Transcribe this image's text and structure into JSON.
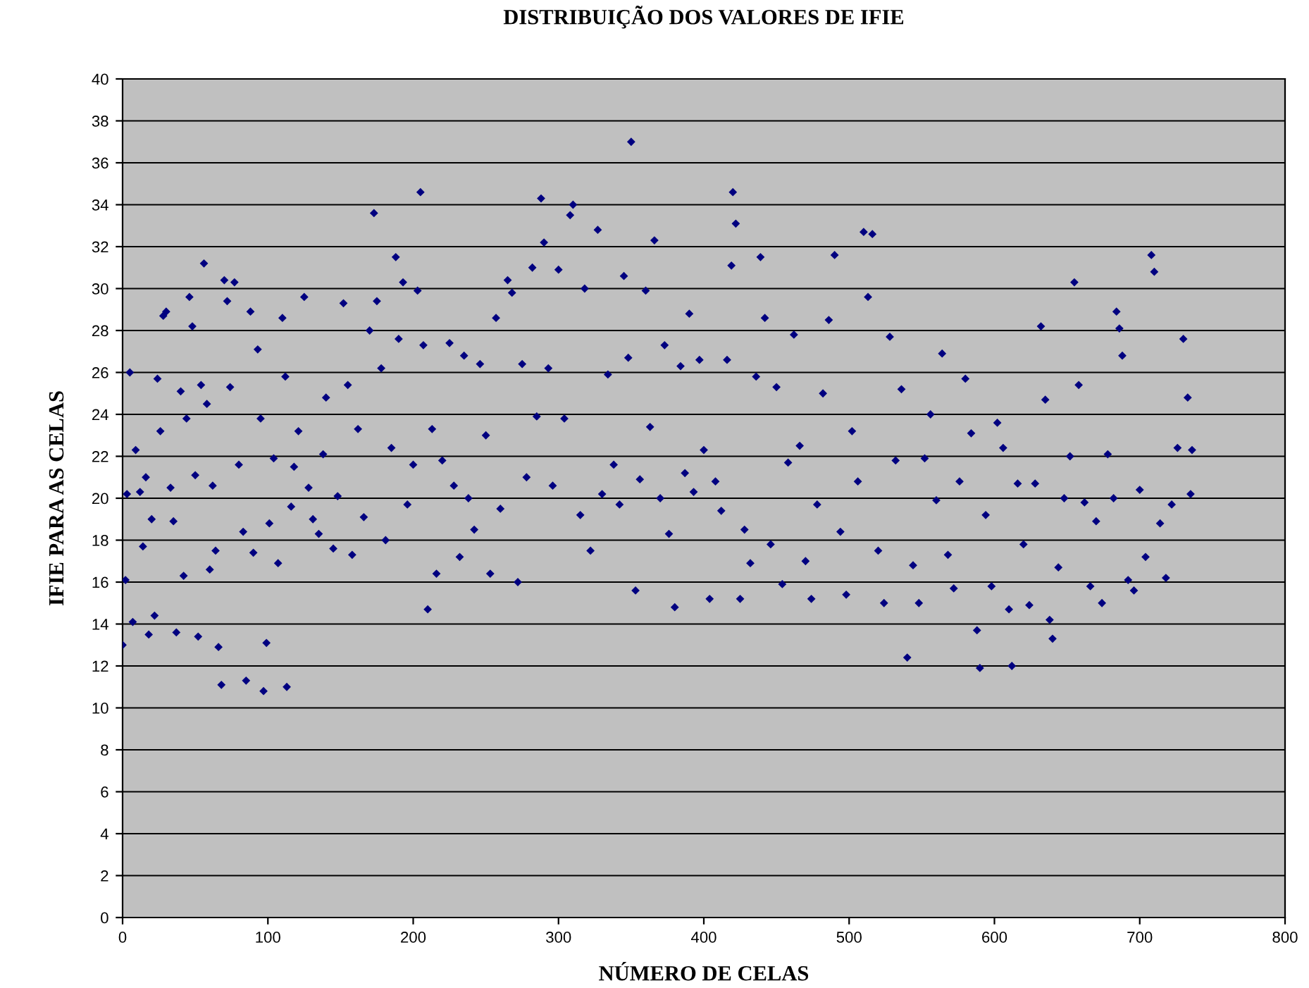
{
  "chart_data": {
    "type": "scatter",
    "title": "DISTRIBUIÇÃO DOS VALORES DE IFIE",
    "xlabel": "NÚMERO DE CELAS",
    "ylabel": "IFIE PARA AS CELAS",
    "xlim": [
      0,
      800
    ],
    "xticks": [
      0,
      100,
      200,
      300,
      400,
      500,
      600,
      700,
      800
    ],
    "ylim": [
      0,
      40
    ],
    "yticks": [
      0,
      2,
      4,
      6,
      8,
      10,
      12,
      14,
      16,
      18,
      20,
      22,
      24,
      26,
      28,
      30,
      32,
      34,
      36,
      38,
      40
    ],
    "grid": "y",
    "marker": "diamond",
    "legend": false,
    "series": [
      {
        "color": "#000080",
        "x": [
          0,
          2,
          3,
          5,
          7,
          9,
          12,
          14,
          16,
          18,
          20,
          22,
          24,
          26,
          28,
          30,
          33,
          35,
          37,
          40,
          42,
          44,
          46,
          48,
          50,
          52,
          54,
          56,
          58,
          60,
          62,
          64,
          66,
          68,
          70,
          72,
          74,
          77,
          80,
          83,
          85,
          88,
          90,
          93,
          95,
          97,
          99,
          101,
          104,
          107,
          110,
          112,
          113,
          116,
          118,
          121,
          125,
          128,
          131,
          135,
          138,
          140,
          145,
          148,
          152,
          155,
          158,
          162,
          166,
          170,
          173,
          175,
          178,
          181,
          185,
          188,
          190,
          193,
          196,
          200,
          203,
          205,
          207,
          210,
          213,
          216,
          220,
          225,
          228,
          232,
          235,
          238,
          242,
          246,
          250,
          253,
          257,
          260,
          265,
          268,
          272,
          275,
          278,
          282,
          285,
          288,
          290,
          293,
          296,
          300,
          304,
          308,
          310,
          315,
          318,
          322,
          327,
          330,
          334,
          338,
          342,
          345,
          348,
          350,
          353,
          356,
          360,
          363,
          366,
          370,
          373,
          376,
          380,
          384,
          387,
          390,
          393,
          397,
          400,
          404,
          408,
          412,
          416,
          419,
          420,
          422,
          425,
          428,
          432,
          436,
          439,
          442,
          446,
          450,
          454,
          458,
          462,
          466,
          470,
          474,
          478,
          482,
          486,
          490,
          494,
          498,
          502,
          506,
          510,
          513,
          516,
          520,
          524,
          528,
          532,
          536,
          540,
          544,
          548,
          552,
          556,
          560,
          564,
          568,
          572,
          576,
          580,
          584,
          588,
          590,
          594,
          598,
          602,
          606,
          610,
          612,
          616,
          620,
          624,
          628,
          632,
          635,
          638,
          640,
          644,
          648,
          652,
          655,
          658,
          662,
          666,
          670,
          674,
          678,
          682,
          684,
          686,
          688,
          692,
          696,
          700,
          704,
          708,
          710,
          714,
          718,
          722,
          726,
          730,
          733,
          735,
          736
        ],
        "values": [
          13.0,
          16.1,
          20.2,
          26.0,
          14.1,
          22.3,
          20.3,
          17.7,
          21.0,
          13.5,
          19.0,
          14.4,
          25.7,
          23.2,
          28.7,
          28.9,
          20.5,
          18.9,
          13.6,
          25.1,
          16.3,
          23.8,
          29.6,
          28.2,
          21.1,
          13.4,
          25.4,
          31.2,
          24.5,
          16.6,
          20.6,
          17.5,
          12.9,
          11.1,
          30.4,
          29.4,
          25.3,
          30.3,
          21.6,
          18.4,
          11.3,
          28.9,
          17.4,
          27.1,
          23.8,
          10.8,
          13.1,
          18.8,
          21.9,
          16.9,
          28.6,
          25.8,
          11.0,
          19.6,
          21.5,
          23.2,
          29.6,
          20.5,
          19.0,
          18.3,
          22.1,
          24.8,
          17.6,
          20.1,
          29.3,
          25.4,
          17.3,
          23.3,
          19.1,
          28.0,
          33.6,
          29.4,
          26.2,
          18.0,
          22.4,
          31.5,
          27.6,
          30.3,
          19.7,
          21.6,
          29.9,
          34.6,
          27.3,
          14.7,
          23.3,
          16.4,
          21.8,
          27.4,
          20.6,
          17.2,
          26.8,
          20.0,
          18.5,
          26.4,
          23.0,
          16.4,
          28.6,
          19.5,
          30.4,
          29.8,
          16.0,
          26.4,
          21.0,
          31.0,
          23.9,
          34.3,
          32.2,
          26.2,
          20.6,
          30.9,
          23.8,
          33.5,
          34.0,
          19.2,
          30.0,
          17.5,
          32.8,
          20.2,
          25.9,
          21.6,
          19.7,
          30.6,
          26.7,
          37.0,
          15.6,
          20.9,
          29.9,
          23.4,
          32.3,
          20.0,
          27.3,
          18.3,
          14.8,
          26.3,
          21.2,
          28.8,
          20.3,
          26.6,
          22.3,
          15.2,
          20.8,
          19.4,
          26.6,
          31.1,
          34.6,
          33.1,
          15.2,
          18.5,
          16.9,
          25.8,
          31.5,
          28.6,
          17.8,
          25.3,
          15.9,
          21.7,
          27.8,
          22.5,
          17.0,
          15.2,
          19.7,
          25.0,
          28.5,
          31.6,
          18.4,
          15.4,
          23.2,
          20.8,
          32.7,
          29.6,
          32.6,
          17.5,
          15.0,
          27.7,
          21.8,
          25.2,
          12.4,
          16.8,
          15.0,
          21.9,
          24.0,
          19.9,
          26.9,
          17.3,
          15.7,
          20.8,
          25.7,
          23.1,
          13.7,
          11.9,
          19.2,
          15.8,
          23.6,
          22.4,
          14.7,
          12.0,
          20.7,
          17.8,
          14.9,
          20.7,
          28.2,
          24.7,
          14.2,
          13.3,
          16.7,
          20.0,
          22.0,
          30.3,
          25.4,
          19.8,
          15.8,
          18.9,
          15.0,
          22.1,
          20.0,
          28.9,
          28.1,
          26.8,
          16.1,
          15.6,
          20.4,
          17.2,
          31.6,
          30.8,
          18.8,
          16.2,
          19.7,
          22.4,
          27.6,
          24.8,
          20.2,
          22.3
        ]
      }
    ]
  }
}
